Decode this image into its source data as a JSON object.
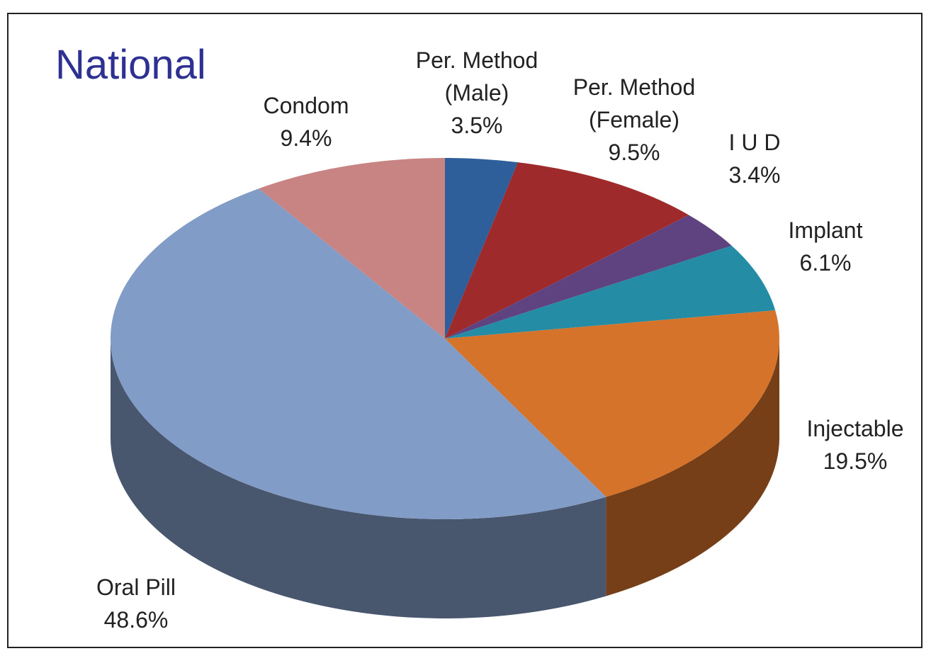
{
  "chart_data": {
    "type": "pie",
    "title": "National",
    "categories": [
      "Per. Method (Male)",
      "Per. Method (Female)",
      "I U D",
      "Implant",
      "Injectable",
      "Oral Pill",
      "Condom"
    ],
    "values": [
      3.5,
      9.5,
      3.4,
      6.1,
      19.5,
      48.6,
      9.4
    ],
    "value_labels": [
      "3.5%",
      "9.5%",
      "3.4%",
      "6.1%",
      "19.5%",
      "48.6%",
      "9.4%"
    ],
    "colors": [
      "#2e5f9a",
      "#9e2a2b",
      "#5f4380",
      "#248ca5",
      "#d6732a",
      "#829cc8",
      "#c88482"
    ]
  }
}
